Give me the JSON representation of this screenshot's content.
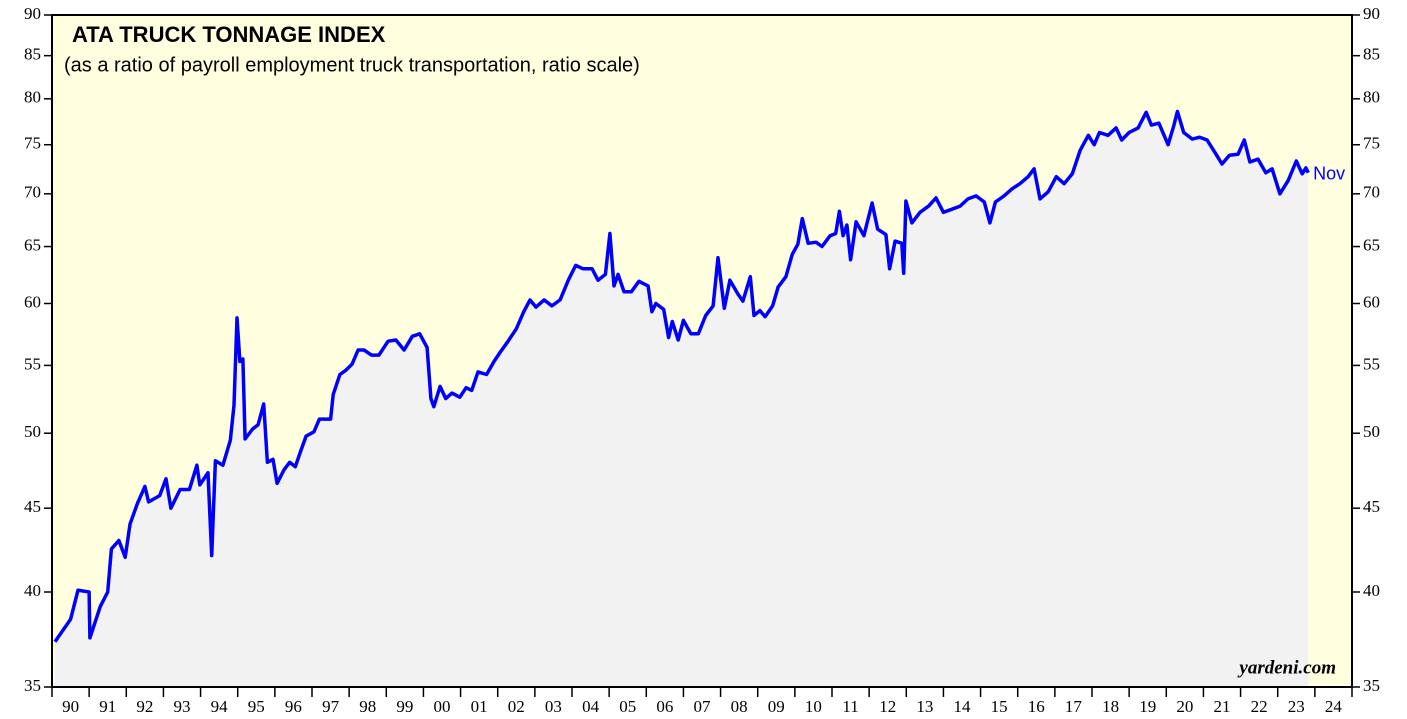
{
  "chart_data": {
    "type": "line",
    "title": "ATA TRUCK TONNAGE INDEX",
    "subtitle": "(as a ratio of payroll employment truck transportation, ratio scale)",
    "annotation": "Nov",
    "source": "yardeni.com",
    "log_scale": true,
    "ylim": [
      35,
      90
    ],
    "yticks": [
      35,
      40,
      45,
      50,
      55,
      60,
      65,
      70,
      75,
      80,
      85,
      90
    ],
    "xlim": [
      1990,
      2025
    ],
    "xticks": [
      {
        "value": 1990,
        "label": "90"
      },
      {
        "value": 1991,
        "label": "91"
      },
      {
        "value": 1992,
        "label": "92"
      },
      {
        "value": 1993,
        "label": "93"
      },
      {
        "value": 1994,
        "label": "94"
      },
      {
        "value": 1995,
        "label": "95"
      },
      {
        "value": 1996,
        "label": "96"
      },
      {
        "value": 1997,
        "label": "97"
      },
      {
        "value": 1998,
        "label": "98"
      },
      {
        "value": 1999,
        "label": "99"
      },
      {
        "value": 2000,
        "label": "00"
      },
      {
        "value": 2001,
        "label": "01"
      },
      {
        "value": 2002,
        "label": "02"
      },
      {
        "value": 2003,
        "label": "03"
      },
      {
        "value": 2004,
        "label": "04"
      },
      {
        "value": 2005,
        "label": "05"
      },
      {
        "value": 2006,
        "label": "06"
      },
      {
        "value": 2007,
        "label": "07"
      },
      {
        "value": 2008,
        "label": "08"
      },
      {
        "value": 2009,
        "label": "09"
      },
      {
        "value": 2010,
        "label": "10"
      },
      {
        "value": 2011,
        "label": "11"
      },
      {
        "value": 2012,
        "label": "12"
      },
      {
        "value": 2013,
        "label": "13"
      },
      {
        "value": 2014,
        "label": "14"
      },
      {
        "value": 2015,
        "label": "15"
      },
      {
        "value": 2016,
        "label": "16"
      },
      {
        "value": 2017,
        "label": "17"
      },
      {
        "value": 2018,
        "label": "18"
      },
      {
        "value": 2019,
        "label": "19"
      },
      {
        "value": 2020,
        "label": "20"
      },
      {
        "value": 2021,
        "label": "21"
      },
      {
        "value": 2022,
        "label": "22"
      },
      {
        "value": 2023,
        "label": "23"
      },
      {
        "value": 2024,
        "label": "24"
      }
    ],
    "series": [
      {
        "name": "ATA Truck Tonnage Index",
        "color": "#0000ff",
        "x": [
          1990.08,
          1990.5,
          1990.7,
          1991.0,
          1991.02,
          1991.3,
          1991.5,
          1991.6,
          1991.8,
          1991.97,
          1992.1,
          1992.3,
          1992.5,
          1992.6,
          1992.9,
          1993.07,
          1993.2,
          1993.45,
          1993.7,
          1993.9,
          1993.98,
          1994.2,
          1994.3,
          1994.4,
          1994.6,
          1994.8,
          1994.9,
          1994.98,
          1995.06,
          1995.14,
          1995.2,
          1995.4,
          1995.55,
          1995.7,
          1995.8,
          1995.95,
          1996.06,
          1996.25,
          1996.4,
          1996.55,
          1996.7,
          1996.84,
          1997.05,
          1997.2,
          1997.5,
          1997.57,
          1997.75,
          1997.9,
          1998.08,
          1998.24,
          1998.4,
          1998.6,
          1998.8,
          1999.05,
          1999.26,
          1999.48,
          1999.7,
          1999.9,
          2000.1,
          2000.2,
          2000.28,
          2000.45,
          2000.6,
          2000.77,
          2000.98,
          2001.15,
          2001.3,
          2001.47,
          2001.7,
          2001.9,
          2002.06,
          2002.28,
          2002.5,
          2002.7,
          2002.87,
          2003.03,
          2003.25,
          2003.46,
          2003.68,
          2003.9,
          2004.1,
          2004.3,
          2004.54,
          2004.7,
          2004.9,
          2005.02,
          2005.13,
          2005.24,
          2005.4,
          2005.6,
          2005.8,
          2006.05,
          2006.15,
          2006.26,
          2006.47,
          2006.6,
          2006.7,
          2006.86,
          2007.0,
          2007.2,
          2007.4,
          2007.6,
          2007.8,
          2007.93,
          2008.1,
          2008.25,
          2008.47,
          2008.6,
          2008.8,
          2008.9,
          2009.06,
          2009.2,
          2009.4,
          2009.55,
          2009.76,
          2009.93,
          2010.08,
          2010.2,
          2010.36,
          2010.57,
          2010.73,
          2010.95,
          2011.1,
          2011.2,
          2011.3,
          2011.4,
          2011.5,
          2011.65,
          2011.86,
          2012.08,
          2012.23,
          2012.45,
          2012.55,
          2012.7,
          2012.88,
          2012.93,
          2012.99,
          2013.15,
          2013.37,
          2013.6,
          2013.8,
          2014.0,
          2014.23,
          2014.45,
          2014.66,
          2014.88,
          2015.1,
          2015.25,
          2015.4,
          2015.63,
          2015.85,
          2016.06,
          2016.28,
          2016.44,
          2016.6,
          2016.82,
          2017.04,
          2017.25,
          2017.47,
          2017.68,
          2017.9,
          2018.06,
          2018.2,
          2018.43,
          2018.65,
          2018.8,
          2019.0,
          2019.24,
          2019.46,
          2019.6,
          2019.8,
          2020.05,
          2020.2,
          2020.3,
          2020.47,
          2020.7,
          2020.9,
          2021.1,
          2021.34,
          2021.5,
          2021.7,
          2021.93,
          2022.1,
          2022.25,
          2022.47,
          2022.68,
          2022.85,
          2023.06,
          2023.28,
          2023.5,
          2023.66,
          2023.76,
          2023.82
        ],
        "values": [
          37.3,
          38.5,
          40.1,
          40.0,
          37.5,
          39.2,
          40.0,
          42.5,
          43.0,
          42.0,
          44.0,
          45.3,
          46.4,
          45.4,
          45.8,
          46.9,
          45.0,
          46.2,
          46.2,
          47.8,
          46.5,
          47.3,
          42.1,
          48.1,
          47.8,
          49.5,
          52.0,
          58.8,
          55.3,
          55.5,
          49.6,
          50.3,
          50.6,
          52.1,
          48.0,
          48.2,
          46.6,
          47.5,
          48.0,
          47.7,
          48.8,
          49.8,
          50.1,
          51.0,
          51.0,
          52.8,
          54.3,
          54.6,
          55.1,
          56.2,
          56.2,
          55.8,
          55.8,
          56.9,
          57.0,
          56.2,
          57.3,
          57.5,
          56.4,
          52.5,
          51.9,
          53.4,
          52.5,
          52.9,
          52.6,
          53.3,
          53.1,
          54.5,
          54.3,
          55.3,
          56.0,
          56.9,
          57.9,
          59.3,
          60.3,
          59.7,
          60.3,
          59.8,
          60.3,
          62.0,
          63.3,
          63.0,
          63.0,
          62.0,
          62.5,
          66.2,
          61.5,
          62.5,
          61.0,
          61.0,
          61.9,
          61.5,
          59.3,
          60.0,
          59.5,
          57.2,
          58.5,
          57.0,
          58.6,
          57.5,
          57.5,
          59.0,
          59.8,
          64.0,
          59.6,
          62.0,
          60.8,
          60.2,
          62.3,
          59.0,
          59.4,
          58.9,
          59.8,
          61.4,
          62.3,
          64.3,
          65.2,
          67.6,
          65.3,
          65.4,
          65.0,
          66.0,
          66.2,
          68.3,
          66.0,
          67.0,
          63.8,
          67.3,
          66.0,
          69.1,
          66.6,
          66.1,
          63.0,
          65.5,
          65.3,
          62.6,
          69.3,
          67.2,
          68.2,
          68.8,
          69.6,
          68.2,
          68.5,
          68.8,
          69.5,
          69.8,
          69.2,
          67.2,
          69.2,
          69.8,
          70.5,
          71.0,
          71.7,
          72.5,
          69.5,
          70.2,
          71.7,
          71.0,
          72.0,
          74.4,
          76.0,
          75.0,
          76.3,
          76.0,
          76.8,
          75.5,
          76.3,
          76.8,
          78.5,
          77.1,
          77.3,
          75.0,
          77.0,
          78.6,
          76.3,
          75.6,
          75.8,
          75.5,
          74.0,
          73.0,
          73.9,
          74.0,
          75.5,
          73.2,
          73.5,
          72.1,
          72.5,
          70.0,
          71.3,
          73.3,
          72.0,
          72.6,
          72.1
        ]
      }
    ]
  }
}
